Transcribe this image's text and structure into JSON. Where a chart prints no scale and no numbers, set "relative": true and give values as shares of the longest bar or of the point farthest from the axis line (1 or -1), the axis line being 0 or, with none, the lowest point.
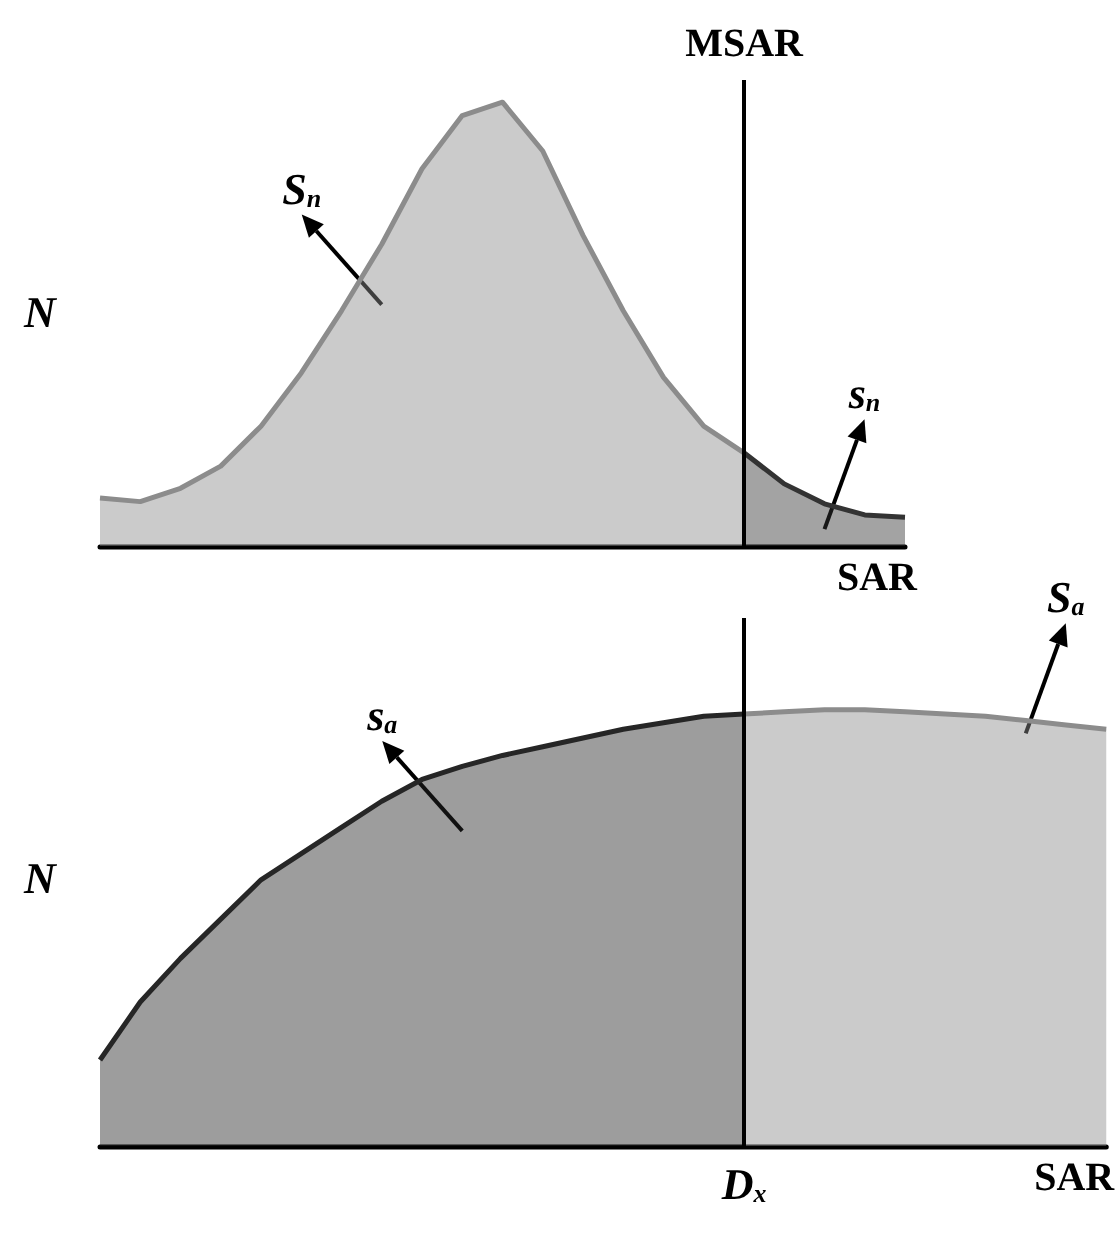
{
  "chart_data": [
    {
      "type": "area",
      "relative": true,
      "xlabel": "SAR",
      "ylabel": "N",
      "categories": [
        null,
        null,
        null,
        null,
        null,
        null,
        null,
        null,
        null,
        null,
        null,
        null,
        null,
        null,
        null,
        null,
        null,
        null,
        null,
        null,
        null
      ],
      "series": [
        {
          "color": "#8c8c8c",
          "values": [
            0.108,
            0.1,
            0.13,
            0.18,
            0.27,
            0.39,
            0.53,
            0.68,
            0.85,
            0.97,
            1,
            0.89,
            0.7,
            0.53,
            0.38,
            0.27,
            0.21,
            null,
            null,
            null,
            null
          ]
        },
        {
          "color": "#333333",
          "values": [
            null,
            null,
            null,
            null,
            null,
            null,
            null,
            null,
            null,
            null,
            null,
            null,
            null,
            null,
            null,
            null,
            0.21,
            0.14,
            0.095,
            0.07,
            0.065
          ]
        }
      ],
      "annotations": [
        "S$_{n}$",
        "s$_{n}$",
        "MSAR"
      ]
    },
    {
      "type": "area",
      "relative": true,
      "xlabel": "SAR",
      "ylabel": "N",
      "categories": [
        null,
        null,
        null,
        null,
        null,
        null,
        null,
        null,
        null,
        null,
        null,
        null,
        null,
        null,
        null,
        null,
        null,
        null,
        null,
        null,
        null,
        null,
        null,
        null,
        null,
        null
      ],
      "series": [
        {
          "color": "#262626",
          "values": [
            0.197,
            0.33,
            0.43,
            0.52,
            0.61,
            0.67,
            0.73,
            0.79,
            0.84,
            0.87,
            0.895,
            0.915,
            0.935,
            0.955,
            0.97,
            0.985,
            0.99,
            null,
            null,
            null,
            null,
            null,
            null,
            null,
            null,
            null
          ]
        },
        {
          "color": "#8c8c8c",
          "values": [
            null,
            null,
            null,
            null,
            null,
            null,
            null,
            null,
            null,
            null,
            null,
            null,
            null,
            null,
            null,
            null,
            0.99,
            0.995,
            1,
            1,
            0.995,
            0.99,
            0.985,
            0.975,
            0.965,
            0.955
          ]
        }
      ],
      "annotations": [
        "s$_{a}$",
        "S$_{a}$",
        "D$_{x}$"
      ]
    }
  ]
}
